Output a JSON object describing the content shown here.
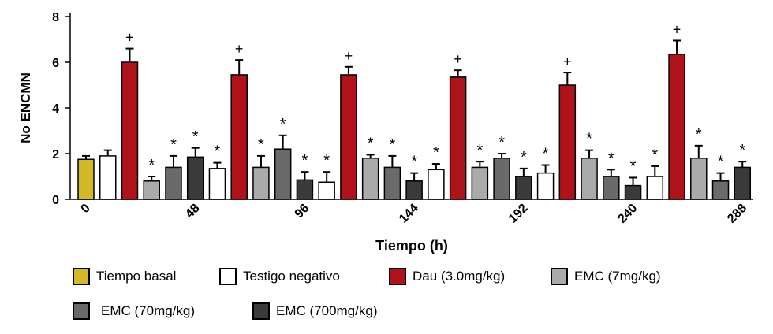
{
  "chart_data": {
    "type": "bar",
    "title": "",
    "xlabel": "Tiempo (h)",
    "ylabel": "No ENCMN",
    "ylim": [
      0,
      8
    ],
    "yticks": [
      "0",
      "2",
      "4",
      "6",
      "8"
    ],
    "xtick_labels": [
      "0",
      "48",
      "96",
      "144",
      "192",
      "240",
      "288"
    ],
    "legend_position": "bottom",
    "series": [
      {
        "name": "Tiempo basal",
        "color": "#d4b828"
      },
      {
        "name": "Testigo negativo",
        "color": "#ffffff"
      },
      {
        "name": "Dau (3.0mg/kg)",
        "color": "#b0121a"
      },
      {
        "name": "EMC (7mg/kg)",
        "color": "#aaaaaa"
      },
      {
        "name": "EMC (70mg/kg)",
        "color": "#6a6a6a"
      },
      {
        "name": "EMC (700mg/kg)",
        "color": "#3a3a3a"
      }
    ],
    "bars": [
      {
        "series": 0,
        "value": 1.75,
        "error": 0.15,
        "mark": ""
      },
      {
        "series": 1,
        "value": 1.9,
        "error": 0.25,
        "mark": ""
      },
      {
        "series": 2,
        "value": 6.0,
        "error": 0.6,
        "mark": "+"
      },
      {
        "series": 3,
        "value": 0.8,
        "error": 0.2,
        "mark": "*"
      },
      {
        "series": 4,
        "value": 1.4,
        "error": 0.5,
        "mark": "*"
      },
      {
        "series": 5,
        "value": 1.85,
        "error": 0.4,
        "mark": "*"
      },
      {
        "series": 1,
        "value": 1.35,
        "error": 0.25,
        "mark": "*"
      },
      {
        "series": 2,
        "value": 5.45,
        "error": 0.65,
        "mark": "+"
      },
      {
        "series": 3,
        "value": 1.4,
        "error": 0.5,
        "mark": "*"
      },
      {
        "series": 4,
        "value": 2.2,
        "error": 0.6,
        "mark": "*"
      },
      {
        "series": 5,
        "value": 0.85,
        "error": 0.35,
        "mark": "*"
      },
      {
        "series": 1,
        "value": 0.75,
        "error": 0.45,
        "mark": "*"
      },
      {
        "series": 2,
        "value": 5.45,
        "error": 0.35,
        "mark": "+"
      },
      {
        "series": 3,
        "value": 1.8,
        "error": 0.15,
        "mark": "*"
      },
      {
        "series": 4,
        "value": 1.4,
        "error": 0.5,
        "mark": "*"
      },
      {
        "series": 5,
        "value": 0.8,
        "error": 0.35,
        "mark": "*"
      },
      {
        "series": 1,
        "value": 1.3,
        "error": 0.25,
        "mark": "*"
      },
      {
        "series": 2,
        "value": 5.35,
        "error": 0.3,
        "mark": "+"
      },
      {
        "series": 3,
        "value": 1.4,
        "error": 0.25,
        "mark": "*"
      },
      {
        "series": 4,
        "value": 1.8,
        "error": 0.2,
        "mark": "*"
      },
      {
        "series": 5,
        "value": 1.0,
        "error": 0.35,
        "mark": "*"
      },
      {
        "series": 1,
        "value": 1.15,
        "error": 0.35,
        "mark": "*"
      },
      {
        "series": 2,
        "value": 5.0,
        "error": 0.55,
        "mark": "+"
      },
      {
        "series": 3,
        "value": 1.8,
        "error": 0.35,
        "mark": "*"
      },
      {
        "series": 4,
        "value": 1.0,
        "error": 0.3,
        "mark": "*"
      },
      {
        "series": 5,
        "value": 0.6,
        "error": 0.35,
        "mark": "*"
      },
      {
        "series": 1,
        "value": 1.0,
        "error": 0.45,
        "mark": "*"
      },
      {
        "series": 2,
        "value": 6.35,
        "error": 0.6,
        "mark": "+"
      },
      {
        "series": 3,
        "value": 1.8,
        "error": 0.55,
        "mark": "*"
      },
      {
        "series": 4,
        "value": 0.8,
        "error": 0.35,
        "mark": "*"
      },
      {
        "series": 5,
        "value": 1.4,
        "error": 0.25,
        "mark": "*"
      }
    ]
  }
}
